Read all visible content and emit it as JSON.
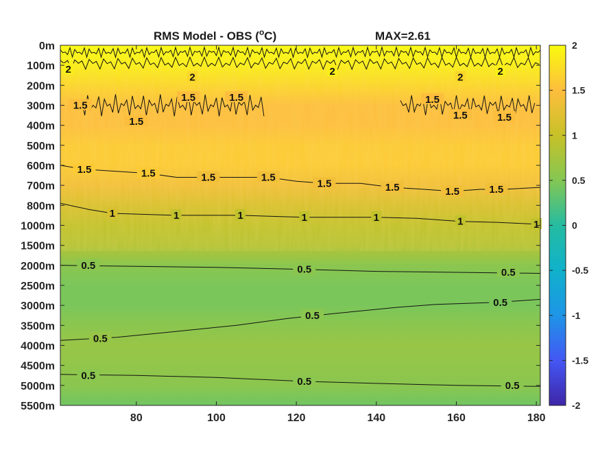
{
  "chart_data": {
    "type": "heatmap",
    "title": "RMS Model - OBS (",
    "title_unit_super": "o",
    "title_unit_end": "C)",
    "max_label": "MAX=2.61",
    "x_ticks": [
      80,
      100,
      120,
      140,
      160,
      180
    ],
    "xlim": [
      61,
      181
    ],
    "y_ticks": [
      "0m",
      "100m",
      "200m",
      "300m",
      "400m",
      "500m",
      "600m",
      "700m",
      "800m",
      "1000m",
      "1500m",
      "2000m",
      "2500m",
      "3000m",
      "3500m",
      "4000m",
      "4500m",
      "5000m",
      "5500m"
    ],
    "colorbar": {
      "colormap": "parula",
      "range": [
        -2,
        2
      ],
      "ticks": [
        "2",
        "1.5",
        "1",
        "0.5",
        "0",
        "-0.5",
        "-1",
        "-1.5",
        "-2"
      ],
      "tick_values": [
        2,
        1.5,
        1,
        0.5,
        0,
        -0.5,
        -1,
        -1.5,
        -2
      ]
    },
    "depth_profile": [
      {
        "depth": "0m",
        "value": 2.0
      },
      {
        "depth": "100m",
        "value": 1.9
      },
      {
        "depth": "200m",
        "value": 1.7
      },
      {
        "depth": "300m",
        "value": 1.5
      },
      {
        "depth": "400m",
        "value": 1.5
      },
      {
        "depth": "500m",
        "value": 1.6
      },
      {
        "depth": "600m",
        "value": 1.6
      },
      {
        "depth": "700m",
        "value": 1.4
      },
      {
        "depth": "800m",
        "value": 1.15
      },
      {
        "depth": "1000m",
        "value": 0.95
      },
      {
        "depth": "1500m",
        "value": 0.85
      },
      {
        "depth": "2000m",
        "value": 0.55
      },
      {
        "depth": "2500m",
        "value": 0.45
      },
      {
        "depth": "3000m",
        "value": 0.45
      },
      {
        "depth": "3500m",
        "value": 0.55
      },
      {
        "depth": "4000m",
        "value": 0.65
      },
      {
        "depth": "4500m",
        "value": 0.6
      },
      {
        "depth": "5000m",
        "value": 0.55
      },
      {
        "depth": "5500m",
        "value": 0.4
      }
    ],
    "contour_labels": [
      {
        "text": "2",
        "x": 63,
        "depth_index": 1.2
      },
      {
        "text": "2",
        "x": 94,
        "depth_index": 1.6
      },
      {
        "text": "2",
        "x": 129,
        "depth_index": 1.3
      },
      {
        "text": "2",
        "x": 161,
        "depth_index": 1.6
      },
      {
        "text": "2",
        "x": 171,
        "depth_index": 1.3
      },
      {
        "text": "1.5",
        "x": 66,
        "depth_index": 3.0
      },
      {
        "text": "1.5",
        "x": 80,
        "depth_index": 3.8
      },
      {
        "text": "1.5",
        "x": 93,
        "depth_index": 2.6
      },
      {
        "text": "1.5",
        "x": 105,
        "depth_index": 2.6
      },
      {
        "text": "1.5",
        "x": 154,
        "depth_index": 2.7
      },
      {
        "text": "1.5",
        "x": 161,
        "depth_index": 3.5
      },
      {
        "text": "1.5",
        "x": 172,
        "depth_index": 3.6
      },
      {
        "text": "1.5",
        "x": 67,
        "depth_index": 6.2
      },
      {
        "text": "1.5",
        "x": 83,
        "depth_index": 6.4
      },
      {
        "text": "1.5",
        "x": 98,
        "depth_index": 6.6
      },
      {
        "text": "1.5",
        "x": 113,
        "depth_index": 6.6
      },
      {
        "text": "1.5",
        "x": 127,
        "depth_index": 6.9
      },
      {
        "text": "1.5",
        "x": 144,
        "depth_index": 7.1
      },
      {
        "text": "1.5",
        "x": 159,
        "depth_index": 7.3
      },
      {
        "text": "1.5",
        "x": 170,
        "depth_index": 7.2
      },
      {
        "text": "1",
        "x": 74,
        "depth_index": 8.4
      },
      {
        "text": "1",
        "x": 90,
        "depth_index": 8.5
      },
      {
        "text": "1",
        "x": 106,
        "depth_index": 8.5
      },
      {
        "text": "1",
        "x": 122,
        "depth_index": 8.6
      },
      {
        "text": "1",
        "x": 140,
        "depth_index": 8.6
      },
      {
        "text": "1",
        "x": 161,
        "depth_index": 8.8
      },
      {
        "text": "1",
        "x": 180,
        "depth_index": 8.95
      },
      {
        "text": "0.5",
        "x": 68,
        "depth_index": 11.0
      },
      {
        "text": "0.5",
        "x": 122,
        "depth_index": 11.2
      },
      {
        "text": "0.5",
        "x": 173,
        "depth_index": 11.35
      },
      {
        "text": "0.5",
        "x": 171,
        "depth_index": 12.85
      },
      {
        "text": "0.5",
        "x": 124,
        "depth_index": 13.5
      },
      {
        "text": "0.5",
        "x": 71,
        "depth_index": 14.65
      },
      {
        "text": "0.5",
        "x": 68,
        "depth_index": 16.5
      },
      {
        "text": "0.5",
        "x": 122,
        "depth_index": 16.8
      },
      {
        "text": "0.5",
        "x": 174,
        "depth_index": 17.0
      }
    ]
  }
}
